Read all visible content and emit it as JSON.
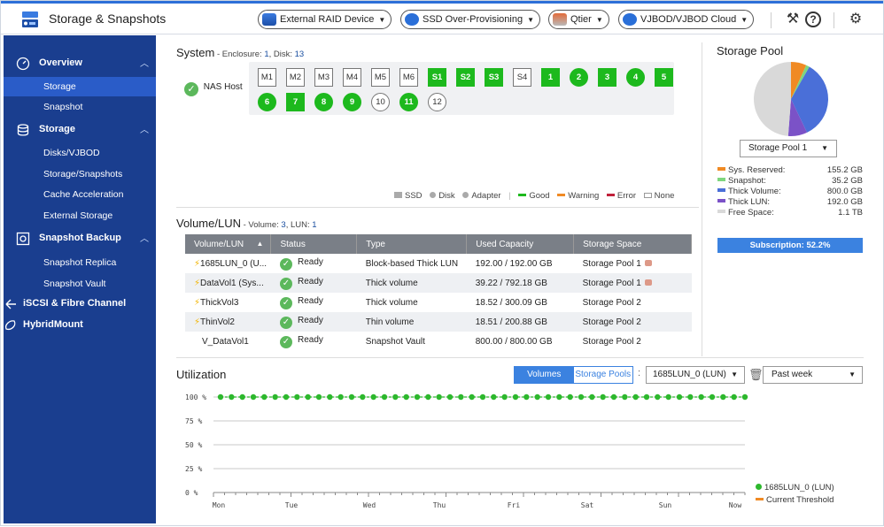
{
  "app": {
    "title": "Storage & Snapshots"
  },
  "toolbar": {
    "external_raid": "External RAID Device",
    "ssd_overprov": "SSD Over-Provisioning",
    "qtier": "Qtier",
    "vjbod_cloud": "VJBOD/VJBOD Cloud"
  },
  "sidebar": {
    "groups": [
      {
        "label": "Overview",
        "icon": "overview-icon",
        "items": [
          "Storage",
          "Snapshot"
        ]
      },
      {
        "label": "Storage",
        "icon": "database-icon",
        "items": [
          "Disks/VJBOD",
          "Storage/Snapshots",
          "Cache Acceleration",
          "External Storage"
        ]
      },
      {
        "label": "Snapshot Backup",
        "icon": "snapshot-backup-icon",
        "items": [
          "Snapshot Replica",
          "Snapshot Vault"
        ]
      },
      {
        "label": "iSCSI & Fibre Channel",
        "icon": "iscsi-icon",
        "items": []
      },
      {
        "label": "HybridMount",
        "icon": "hybridmount-icon",
        "items": []
      }
    ],
    "active_item": "Storage"
  },
  "system": {
    "title": "System",
    "enclosure_label": " - Enclosure: ",
    "enclosure_count": "1",
    "disk_label": ", Disk: ",
    "disk_count": "13",
    "host_label": "NAS Host",
    "slots_row1": [
      {
        "label": "M1",
        "state": "empty",
        "shape": "square"
      },
      {
        "label": "M2",
        "state": "empty",
        "shape": "square"
      },
      {
        "label": "M3",
        "state": "empty",
        "shape": "square"
      },
      {
        "label": "M4",
        "state": "empty",
        "shape": "square"
      },
      {
        "label": "M5",
        "state": "empty",
        "shape": "square"
      },
      {
        "label": "M6",
        "state": "empty",
        "shape": "square"
      },
      {
        "label": "S1",
        "state": "good",
        "shape": "square"
      },
      {
        "label": "S2",
        "state": "good",
        "shape": "square"
      },
      {
        "label": "S3",
        "state": "good",
        "shape": "square"
      },
      {
        "label": "S4",
        "state": "empty",
        "shape": "square"
      },
      {
        "label": "1",
        "state": "good",
        "shape": "square"
      },
      {
        "label": "2",
        "state": "good",
        "shape": "circle"
      },
      {
        "label": "3",
        "state": "good",
        "shape": "square"
      },
      {
        "label": "4",
        "state": "good",
        "shape": "circle"
      },
      {
        "label": "5",
        "state": "good",
        "shape": "square"
      }
    ],
    "slots_row2": [
      {
        "label": "6",
        "state": "good",
        "shape": "circle"
      },
      {
        "label": "7",
        "state": "good",
        "shape": "square"
      },
      {
        "label": "8",
        "state": "good",
        "shape": "circle"
      },
      {
        "label": "9",
        "state": "good",
        "shape": "circle"
      },
      {
        "label": "10",
        "state": "empty",
        "shape": "circle"
      },
      {
        "label": "11",
        "state": "good",
        "shape": "circle"
      },
      {
        "label": "12",
        "state": "empty",
        "shape": "circle"
      }
    ],
    "legend": {
      "ssd": "SSD",
      "disk": "Disk",
      "adapter": "Adapter",
      "good": "Good",
      "warning": "Warning",
      "error": "Error",
      "none": "None"
    }
  },
  "volume": {
    "title": "Volume/LUN",
    "volume_label": " - Volume: ",
    "volume_count": "3",
    "lun_label": ", LUN: ",
    "lun_count": "1",
    "columns": [
      "Volume/LUN",
      "Status",
      "Type",
      "Used Capacity",
      "Storage Space"
    ],
    "rows": [
      {
        "name": "1685LUN_0 (U...",
        "bolt": true,
        "status": "Ready",
        "type": "Block-based Thick LUN",
        "used": "192.00 / 192.00 GB",
        "space": "Storage Pool 1",
        "pool_icon": true
      },
      {
        "name": "DataVol1 (Sys...",
        "bolt": true,
        "status": "Ready",
        "type": "Thick volume",
        "used": "39.22 / 792.18 GB",
        "space": "Storage Pool 1",
        "pool_icon": true
      },
      {
        "name": "ThickVol3",
        "bolt": true,
        "status": "Ready",
        "type": "Thick volume",
        "used": "18.52 / 300.09 GB",
        "space": "Storage Pool 2",
        "pool_icon": false
      },
      {
        "name": "ThinVol2",
        "bolt": true,
        "status": "Ready",
        "type": "Thin volume",
        "used": "18.51 / 200.88 GB",
        "space": "Storage Pool 2",
        "pool_icon": false
      },
      {
        "name": "V_DataVol1",
        "bolt": false,
        "status": "Ready",
        "type": "Snapshot Vault",
        "used": "800.00 / 800.00 GB",
        "space": "Storage Pool 2",
        "pool_icon": false
      }
    ]
  },
  "pool": {
    "title": "Storage Pool",
    "selected": "Storage Pool 1",
    "legend": [
      {
        "label": "Sys. Reserved:",
        "value": "155.2 GB",
        "color": "#f08a24",
        "amount": 155.2
      },
      {
        "label": "Snapshot:",
        "value": "35.2 GB",
        "color": "#7ed67e",
        "amount": 35.2
      },
      {
        "label": "Thick Volume:",
        "value": "800.0 GB",
        "color": "#4a6fd8",
        "amount": 800.0
      },
      {
        "label": "Thick LUN:",
        "value": "192.0 GB",
        "color": "#7b52c7",
        "amount": 192.0
      },
      {
        "label": "Free Space:",
        "value": "1.1 TB",
        "color": "#d9d9d9",
        "amount": 1126.4
      }
    ],
    "subscription": "Subscription: 52.2%"
  },
  "utilization": {
    "title": "Utilization",
    "tabs": [
      "Volumes",
      "Storage Pools"
    ],
    "active_tab": "Volumes",
    "selected_volume": "1685LUN_0 (LUN)",
    "range": "Past week",
    "legend_series": "1685LUN_0 (LUN)",
    "legend_threshold": "Current Threshold"
  },
  "chart_data": {
    "type": "line",
    "y_ticks": [
      "100 %",
      "75 %",
      "50 %",
      "25 %",
      "0 %"
    ],
    "ylim": [
      0,
      100
    ],
    "x_ticks": [
      "Mon",
      "Tue",
      "Wed",
      "Thu",
      "Fri",
      "Sat",
      "Sun",
      "Now"
    ],
    "series": [
      {
        "name": "1685LUN_0 (LUN)",
        "color": "#2db82d",
        "values": [
          100,
          100,
          100,
          100,
          100,
          100,
          100,
          100,
          100,
          100,
          100,
          100,
          100,
          100,
          100,
          100,
          100,
          100,
          100,
          100,
          100,
          100,
          100,
          100,
          100,
          100,
          100,
          100,
          100,
          100,
          100,
          100,
          100,
          100,
          100,
          100,
          100,
          100,
          100,
          100,
          100,
          100,
          100,
          100,
          100,
          100,
          100,
          100,
          100
        ]
      },
      {
        "name": "Current Threshold",
        "color": "#f08a24",
        "values": []
      }
    ]
  }
}
